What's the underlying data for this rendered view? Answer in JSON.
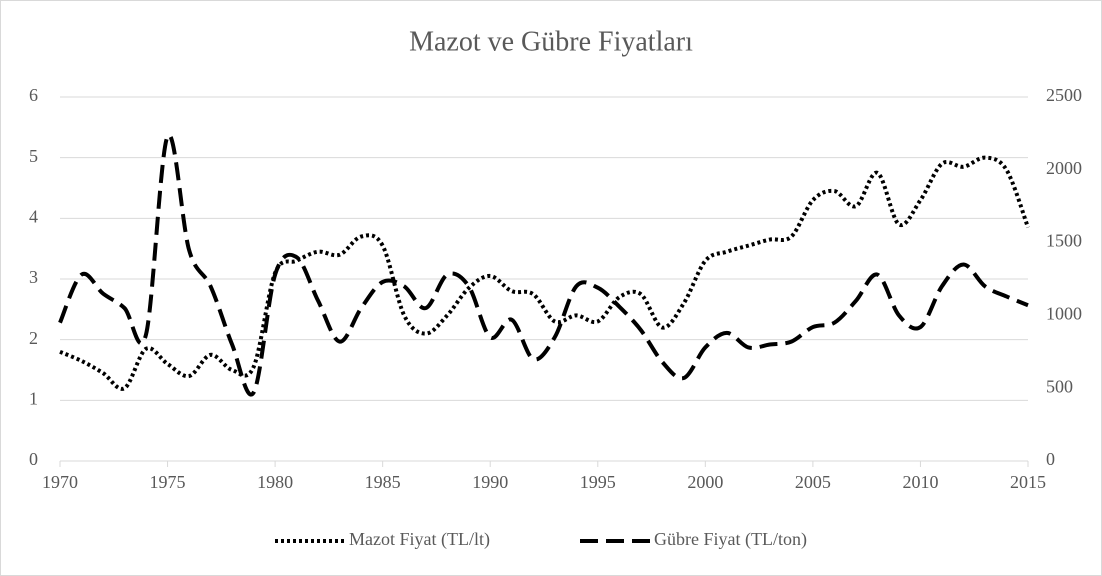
{
  "chart_data": {
    "type": "line",
    "title": "Mazot ve Gübre Fiyatları",
    "x": [
      1970,
      1971,
      1972,
      1973,
      1974,
      1975,
      1976,
      1977,
      1978,
      1979,
      1980,
      1981,
      1982,
      1983,
      1984,
      1985,
      1986,
      1987,
      1988,
      1989,
      1990,
      1991,
      1992,
      1993,
      1994,
      1995,
      1996,
      1997,
      1998,
      1999,
      2000,
      2001,
      2002,
      2003,
      2004,
      2005,
      2006,
      2007,
      2008,
      2009,
      2010,
      2011,
      2012,
      2013,
      2014,
      2015
    ],
    "series": [
      {
        "name": "Mazot Fiyat (TL/lt)",
        "color": "#000000",
        "style": "dotted",
        "axis": "y",
        "values": [
          1.8,
          1.65,
          1.45,
          1.2,
          1.85,
          1.6,
          1.4,
          1.75,
          1.5,
          1.55,
          3.1,
          3.3,
          3.45,
          3.4,
          3.7,
          3.55,
          2.4,
          2.1,
          2.4,
          2.85,
          3.05,
          2.8,
          2.75,
          2.3,
          2.4,
          2.3,
          2.7,
          2.75,
          2.2,
          2.6,
          3.3,
          3.45,
          3.55,
          3.65,
          3.7,
          4.3,
          4.45,
          4.2,
          4.75,
          3.9,
          4.3,
          4.9,
          4.85,
          5.0,
          4.8,
          3.85
        ]
      },
      {
        "name": "Gübre Fiyat (TL/ton)",
        "color": "#000000",
        "style": "dashed",
        "axis": "y2",
        "values": [
          950,
          1280,
          1150,
          1050,
          870,
          2230,
          1450,
          1200,
          800,
          470,
          1280,
          1400,
          1100,
          820,
          1050,
          1230,
          1200,
          1050,
          1280,
          1200,
          850,
          970,
          700,
          850,
          1200,
          1190,
          1060,
          900,
          680,
          570,
          780,
          880,
          780,
          800,
          820,
          920,
          950,
          1100,
          1280,
          1000,
          920,
          1200,
          1350,
          1200,
          1130,
          1070
        ]
      }
    ],
    "xlim": [
      1970,
      2015
    ],
    "xticks": [
      1970,
      1975,
      1980,
      1985,
      1990,
      1995,
      2000,
      2005,
      2010,
      2015
    ],
    "ylim": [
      0,
      6
    ],
    "yticks": [
      0,
      1,
      2,
      3,
      4,
      5,
      6
    ],
    "y2lim": [
      0,
      2500
    ],
    "y2ticks": [
      0,
      500,
      1000,
      1500,
      2000,
      2500
    ],
    "grid": true,
    "legend": "bottom"
  }
}
